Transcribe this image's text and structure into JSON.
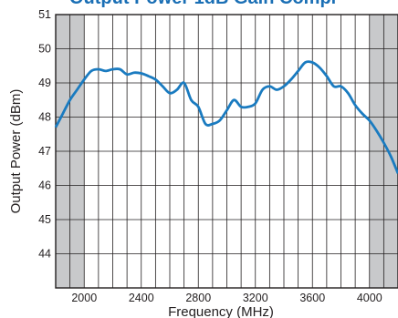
{
  "chart_data": {
    "type": "line",
    "title": "Output Power 1dB Gain Compr",
    "xlabel": "Frequency (MHz)",
    "ylabel": "Output Power (dBm)",
    "xlim": [
      1800,
      4200
    ],
    "ylim": [
      43,
      51
    ],
    "x_ticks": [
      "2000",
      "2400",
      "2800",
      "3200",
      "3600",
      "4000"
    ],
    "y_ticks": [
      "44",
      "45",
      "46",
      "47",
      "48",
      "49",
      "50",
      "51"
    ],
    "grid": true,
    "shaded_regions": [
      [
        1800,
        2000
      ],
      [
        4000,
        4200
      ]
    ],
    "colors": {
      "line": "#1a7bc0",
      "shade": "#c8c9cb",
      "grid": "#231f20",
      "title": "#1a6fb5"
    },
    "series": [
      {
        "x": [
          1800,
          1850,
          1900,
          1950,
          2000,
          2050,
          2100,
          2150,
          2200,
          2250,
          2300,
          2350,
          2400,
          2450,
          2500,
          2550,
          2600,
          2650,
          2700,
          2750,
          2800,
          2850,
          2900,
          2950,
          3000,
          3050,
          3100,
          3150,
          3200,
          3250,
          3300,
          3350,
          3400,
          3450,
          3500,
          3550,
          3600,
          3650,
          3700,
          3750,
          3800,
          3850,
          3900,
          3950,
          4000,
          4050,
          4100,
          4150,
          4200
        ],
        "y": [
          47.7,
          48.1,
          48.5,
          48.8,
          49.1,
          49.35,
          49.4,
          49.35,
          49.4,
          49.4,
          49.25,
          49.3,
          49.28,
          49.2,
          49.1,
          48.9,
          48.7,
          48.8,
          49.0,
          48.5,
          48.3,
          47.8,
          47.8,
          47.9,
          48.2,
          48.5,
          48.3,
          48.3,
          48.4,
          48.8,
          48.9,
          48.8,
          48.9,
          49.1,
          49.35,
          49.6,
          49.6,
          49.45,
          49.2,
          48.9,
          48.9,
          48.7,
          48.35,
          48.1,
          47.9,
          47.6,
          47.25,
          46.85,
          46.35
        ]
      }
    ]
  }
}
